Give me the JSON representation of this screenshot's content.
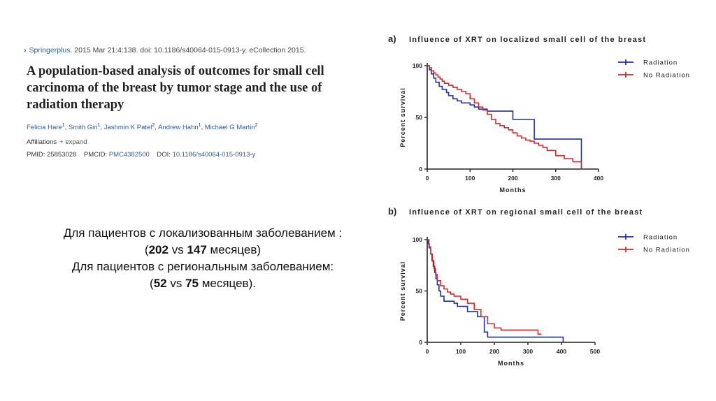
{
  "article": {
    "citation_journal": "Springerplus.",
    "citation_rest": "2015 Mar 21:4:138. doi: 10.1186/s40064-015-0913-y. eCollection 2015.",
    "title": "A population-based analysis of outcomes for small cell carcinoma of the breast by tumor stage and the use of radiation therapy",
    "authors": [
      {
        "name": "Felicia Hare",
        "sup": "1"
      },
      {
        "name": "Smith Giri",
        "sup": "1"
      },
      {
        "name": "Jashmin K Patel",
        "sup": "2"
      },
      {
        "name": "Andrew Hahn",
        "sup": "1"
      },
      {
        "name": "Michael G Martin",
        "sup": "2"
      }
    ],
    "affiliations_label": "Affiliations",
    "expand_label": "+ expand",
    "pmid_label": "PMID: 25853028",
    "pmcid_label": "PMCID:",
    "pmcid_value": "PMC4382500",
    "doi_label": "DOI:",
    "doi_value": "10.1186/s40064-015-0913-y"
  },
  "summary": {
    "line1": "Для пациентов с локализованным заболеванием :",
    "line2_open": "(",
    "line2_a": "202",
    "line2_vs": " vs ",
    "line2_b": "147",
    "line2_tail": " месяцев)",
    "line3": "Для пациентов с региональным заболеванием:",
    "line4_open": "(",
    "line4_a": "52",
    "line4_vs": " vs ",
    "line4_b": "75",
    "line4_tail": " месяцев)."
  },
  "colors": {
    "radiation": "#1f2fb0",
    "no_radiation": "#d42a2a",
    "link": "#2f5f9e"
  },
  "chart_data": [
    {
      "panel": "a)",
      "type": "line",
      "title": "Influence of XRT on localized small cell of the breast",
      "xlabel": "Months",
      "ylabel": "Percent survival",
      "xlim": [
        0,
        400
      ],
      "ylim": [
        0,
        100
      ],
      "xticks": [
        0,
        100,
        200,
        300,
        400
      ],
      "yticks": [
        0,
        50,
        100
      ],
      "legend_position": "top-right",
      "series": [
        {
          "name": "Radiation",
          "color": "#1f2fb0",
          "x": [
            0,
            5,
            10,
            15,
            20,
            28,
            35,
            45,
            50,
            60,
            70,
            80,
            100,
            110,
            120,
            140,
            150,
            180,
            200,
            240,
            250,
            350,
            360
          ],
          "y": [
            100,
            96,
            92,
            88,
            84,
            80,
            77,
            74,
            71,
            68,
            66,
            64,
            62,
            60,
            58,
            56,
            56,
            56,
            48,
            48,
            29,
            29,
            0
          ]
        },
        {
          "name": "No Radiation",
          "color": "#d42a2a",
          "x": [
            0,
            5,
            10,
            15,
            20,
            25,
            30,
            35,
            40,
            50,
            60,
            70,
            80,
            90,
            100,
            110,
            120,
            130,
            140,
            150,
            160,
            170,
            180,
            190,
            200,
            210,
            220,
            230,
            240,
            250,
            260,
            270,
            280,
            300,
            320,
            340,
            360
          ],
          "y": [
            100,
            98,
            95,
            93,
            91,
            89,
            87,
            85,
            83,
            81,
            79,
            77,
            75,
            73,
            68,
            64,
            60,
            57,
            53,
            48,
            44,
            42,
            40,
            38,
            35,
            32,
            30,
            28,
            27,
            25,
            23,
            21,
            18,
            13,
            10,
            7,
            0
          ]
        }
      ]
    },
    {
      "panel": "b)",
      "type": "line",
      "title": "Influence of XRT on regional small cell of the breast",
      "xlabel": "Months",
      "ylabel": "Percent survival",
      "xlim": [
        0,
        500
      ],
      "ylim": [
        0,
        100
      ],
      "xticks": [
        0,
        100,
        200,
        300,
        400,
        500
      ],
      "yticks": [
        0,
        50,
        100
      ],
      "legend_position": "top-right",
      "series": [
        {
          "name": "Radiation",
          "color": "#1f2fb0",
          "x": [
            0,
            3,
            6,
            10,
            14,
            18,
            22,
            26,
            30,
            35,
            40,
            50,
            60,
            80,
            90,
            120,
            150,
            170,
            180,
            400,
            405
          ],
          "y": [
            100,
            96,
            92,
            86,
            80,
            74,
            68,
            62,
            56,
            50,
            45,
            40,
            40,
            38,
            35,
            30,
            25,
            10,
            5,
            5,
            0
          ]
        },
        {
          "name": "No Radiation",
          "color": "#d42a2a",
          "x": [
            0,
            5,
            10,
            15,
            20,
            25,
            30,
            40,
            50,
            60,
            70,
            80,
            100,
            120,
            140,
            160,
            180,
            200,
            220,
            250,
            290,
            330,
            340
          ],
          "y": [
            100,
            93,
            86,
            79,
            72,
            66,
            60,
            55,
            52,
            49,
            47,
            45,
            42,
            38,
            32,
            25,
            18,
            14,
            12,
            12,
            12,
            8,
            8
          ]
        }
      ]
    }
  ]
}
